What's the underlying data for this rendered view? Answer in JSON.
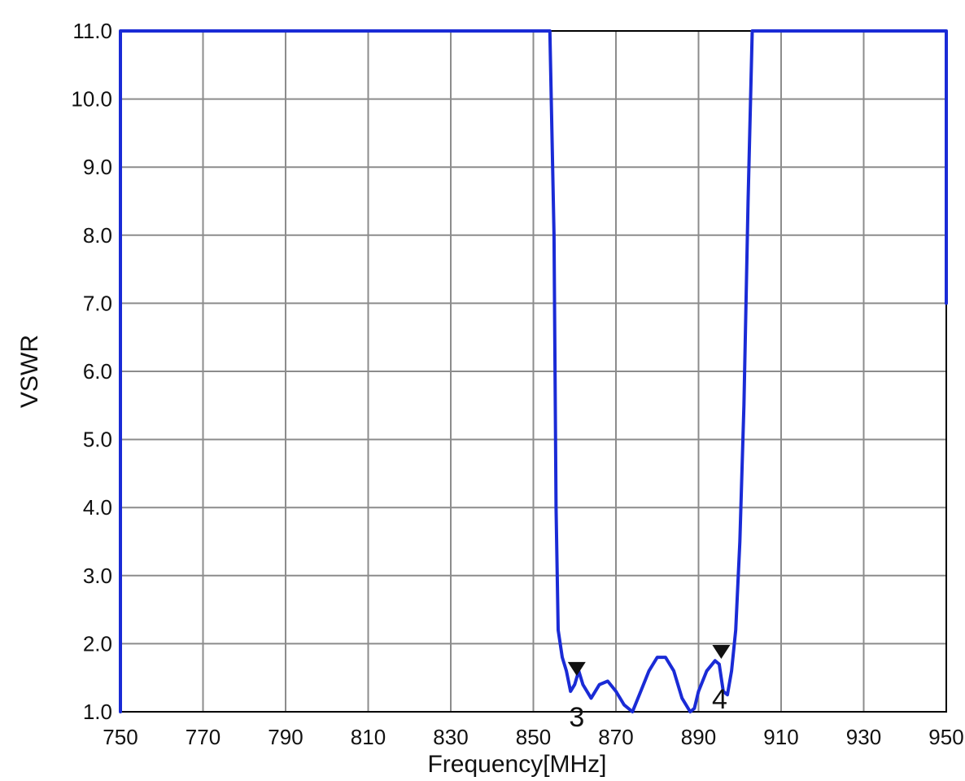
{
  "chart_data": {
    "type": "line",
    "title": "",
    "xlabel": "Frequency[MHz]",
    "ylabel": "VSWR",
    "xlim": [
      750,
      950
    ],
    "ylim": [
      1.0,
      11.0
    ],
    "x_ticks": [
      "750",
      "770",
      "790",
      "810",
      "830",
      "850",
      "870",
      "890",
      "910",
      "930",
      "950"
    ],
    "y_ticks": [
      "1.0",
      "2.0",
      "3.0",
      "4.0",
      "5.0",
      "6.0",
      "7.0",
      "8.0",
      "9.0",
      "10.0",
      "11.0"
    ],
    "grid": true,
    "line_color": "#1a2bd6",
    "series": [
      {
        "x": [
          750,
          750,
          854,
          855,
          855.5,
          856,
          857,
          858,
          859,
          860,
          861,
          862,
          864,
          866,
          868,
          870,
          872,
          874,
          876,
          878,
          880,
          882,
          884,
          886,
          888,
          889,
          890,
          892,
          894,
          895,
          896,
          897,
          898,
          899,
          900,
          901,
          902,
          903,
          904,
          950,
          950
        ],
        "y": [
          1.0,
          11.0,
          11.0,
          8.0,
          4.0,
          2.2,
          1.8,
          1.6,
          1.3,
          1.4,
          1.6,
          1.4,
          1.2,
          1.4,
          1.45,
          1.3,
          1.1,
          1.0,
          1.3,
          1.6,
          1.8,
          1.8,
          1.6,
          1.2,
          1.0,
          1.05,
          1.3,
          1.6,
          1.75,
          1.7,
          1.3,
          1.25,
          1.6,
          2.2,
          3.5,
          5.5,
          8.5,
          11.0,
          11.0,
          11.0,
          7.0
        ]
      }
    ],
    "markers": [
      {
        "label": "3",
        "x": 860.5,
        "y": 1.6
      },
      {
        "label": "4",
        "x": 895.5,
        "y": 1.85
      }
    ]
  }
}
